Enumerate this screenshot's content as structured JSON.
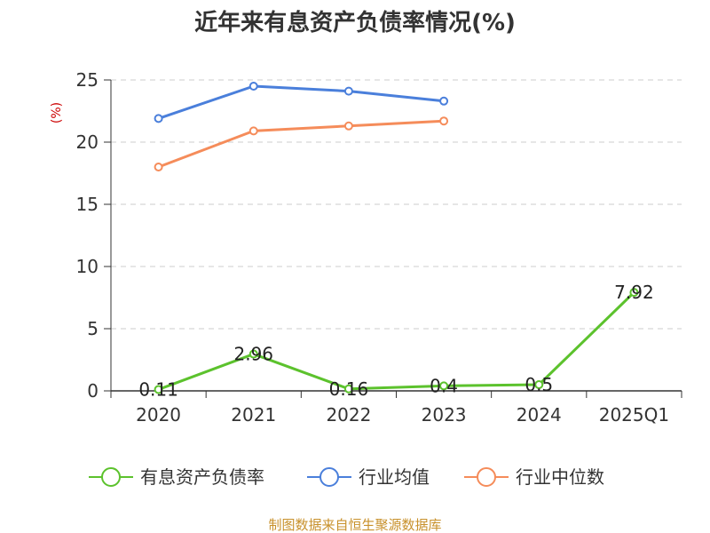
{
  "chart_data": {
    "type": "line",
    "title": "近年来有息资产负债率情况(%)",
    "unit": "(%)",
    "categories": [
      "2020",
      "2021",
      "2022",
      "2023",
      "2024",
      "2025Q1"
    ],
    "ylim": [
      0,
      25
    ],
    "yticks": [
      "0",
      "5",
      "10",
      "15",
      "20",
      "25"
    ],
    "grid": true,
    "legend_position": "bottom",
    "series": [
      {
        "name": "有息资产负债率",
        "color": "#5cc22d",
        "values": [
          0.11,
          2.96,
          0.16,
          0.4,
          0.5,
          7.92
        ],
        "labels": [
          "0.11",
          "2.96",
          "0.16",
          "0.4",
          "0.5",
          "7.92"
        ]
      },
      {
        "name": "行业均值",
        "color": "#4a7fdb",
        "values": [
          21.9,
          24.5,
          24.1,
          23.3,
          null,
          null
        ]
      },
      {
        "name": "行业中位数",
        "color": "#f58c5a",
        "values": [
          18.0,
          20.9,
          21.3,
          21.7,
          null,
          null
        ]
      }
    ]
  },
  "footer": "制图数据来自恒生聚源数据库"
}
